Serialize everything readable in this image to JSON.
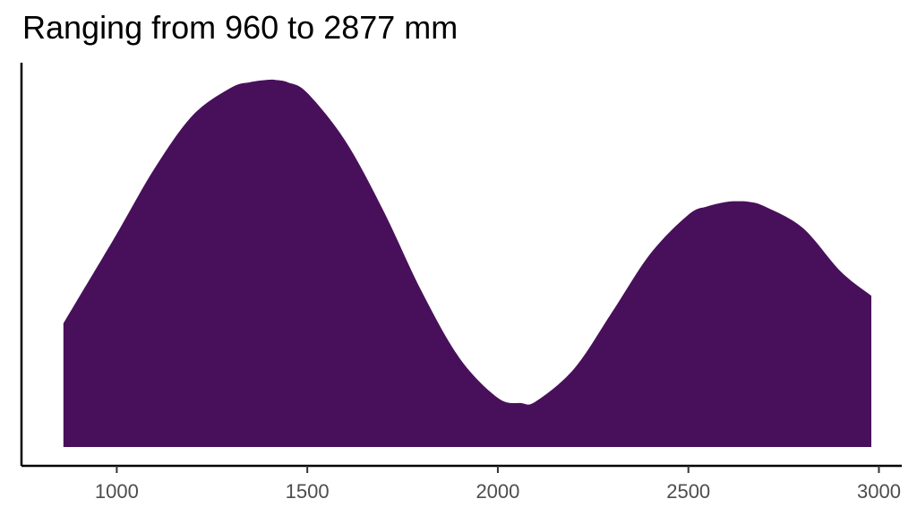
{
  "chart_data": {
    "type": "area",
    "title": "Ranging from 960 to 2877 mm",
    "xlabel": "",
    "ylabel": "",
    "xlim": [
      750,
      3060
    ],
    "x_ticks": [
      1000,
      1500,
      2000,
      2500,
      3000
    ],
    "y_axis_ticks_shown": false,
    "grid": false,
    "fill_color": "#48105b",
    "series": [
      {
        "x": [
          860,
          900,
          1000,
          1100,
          1200,
          1300,
          1350,
          1400,
          1420,
          1450,
          1500,
          1600,
          1700,
          1800,
          1900,
          2000,
          2060,
          2100,
          2200,
          2300,
          2400,
          2500,
          2550,
          2600,
          2630,
          2660,
          2700,
          2800,
          2900,
          2980
        ],
        "y": [
          0.357,
          0.431,
          0.616,
          0.806,
          0.959,
          1.038,
          1.054,
          1.061,
          1.06,
          1.053,
          1.023,
          0.884,
          0.682,
          0.45,
          0.256,
          0.142,
          0.127,
          0.132,
          0.226,
          0.39,
          0.558,
          0.671,
          0.695,
          0.708,
          0.71,
          0.708,
          0.695,
          0.633,
          0.507,
          0.437
        ]
      }
    ]
  }
}
